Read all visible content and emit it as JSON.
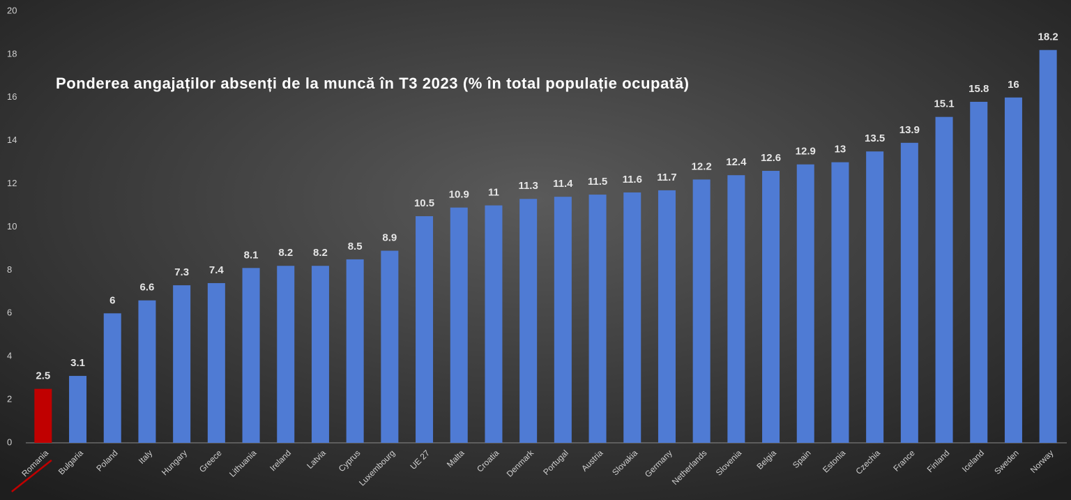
{
  "chart_data": {
    "type": "bar",
    "title": "Ponderea angajaților absenți de la muncă în T3 2023 (% în total populație ocupată)",
    "categories": [
      "Romania",
      "Bulgaria",
      "Poland",
      "Italy",
      "Hungary",
      "Greece",
      "Lithuania",
      "Ireland",
      "Latvia",
      "Cyprus",
      "Luxembourg",
      "UE 27",
      "Malta",
      "Croatia",
      "Denmark",
      "Portugal",
      "Austria",
      "Slovakia",
      "Germany",
      "Netherlands",
      "Slovenia",
      "Belgia",
      "Spain",
      "Estonia",
      "Czechia",
      "France",
      "Finland",
      "Iceland",
      "Sweden",
      "Norway"
    ],
    "values": [
      2.5,
      3.1,
      6,
      6.6,
      7.3,
      7.4,
      8.1,
      8.2,
      8.2,
      8.5,
      8.9,
      10.5,
      10.9,
      11,
      11.3,
      11.4,
      11.5,
      11.6,
      11.7,
      12.2,
      12.4,
      12.6,
      12.9,
      13,
      13.5,
      13.9,
      15.1,
      15.8,
      16,
      18.2
    ],
    "colors": [
      "#c00000",
      "#4f7bd4",
      "#4f7bd4",
      "#4f7bd4",
      "#4f7bd4",
      "#4f7bd4",
      "#4f7bd4",
      "#4f7bd4",
      "#4f7bd4",
      "#4f7bd4",
      "#4f7bd4",
      "#4f7bd4",
      "#4f7bd4",
      "#4f7bd4",
      "#4f7bd4",
      "#4f7bd4",
      "#4f7bd4",
      "#4f7bd4",
      "#4f7bd4",
      "#4f7bd4",
      "#4f7bd4",
      "#4f7bd4",
      "#4f7bd4",
      "#4f7bd4",
      "#4f7bd4",
      "#4f7bd4",
      "#4f7bd4",
      "#4f7bd4",
      "#4f7bd4",
      "#4f7bd4"
    ],
    "ylim": [
      0,
      20
    ],
    "yticks": [
      0,
      2,
      4,
      6,
      8,
      10,
      12,
      14,
      16,
      18,
      20
    ],
    "grid": false
  }
}
